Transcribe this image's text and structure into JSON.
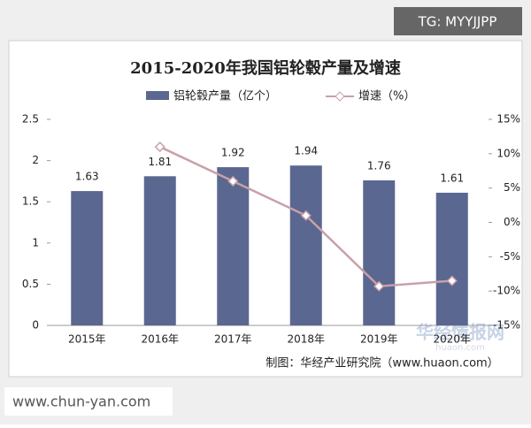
{
  "chart_data": {
    "type": "bar-line",
    "title": "2015-2020年我国铝轮毂产量及增速",
    "categories": [
      "2015年",
      "2016年",
      "2017年",
      "2018年",
      "2019年",
      "2020年"
    ],
    "series": [
      {
        "name": "铝轮毂产量（亿个）",
        "color": "#5a6790",
        "values": [
          1.63,
          1.81,
          1.92,
          1.94,
          1.76,
          1.61
        ]
      },
      {
        "name": "增速（%）",
        "color": "#c9a0a8",
        "axis": "y2",
        "values": [
          null,
          11,
          6,
          1,
          -9.3,
          -8.5
        ]
      }
    ],
    "ylim": [
      0,
      2.5
    ],
    "yticks": [
      0,
      0.5,
      1,
      1.5,
      2,
      2.5
    ],
    "y2lim": [
      -15,
      15
    ],
    "y2ticks": [
      {
        "value": -15,
        "label": "-15%"
      },
      {
        "value": -10,
        "label": "-10%"
      },
      {
        "value": -5,
        "label": "-5%"
      },
      {
        "value": 0,
        "label": "0%"
      },
      {
        "value": 5,
        "label": "5%"
      },
      {
        "value": 10,
        "label": "10%"
      },
      {
        "value": 15,
        "label": "15%"
      }
    ],
    "grid": false,
    "legend": "top",
    "source": "制图：华经产业研究院（www.huaon.com）"
  },
  "overlays": {
    "tag": "TG: MYYJJPP",
    "site": "www.chun-yan.com",
    "watermark": "华经情报网",
    "watermark_sub": "huaon.com"
  }
}
